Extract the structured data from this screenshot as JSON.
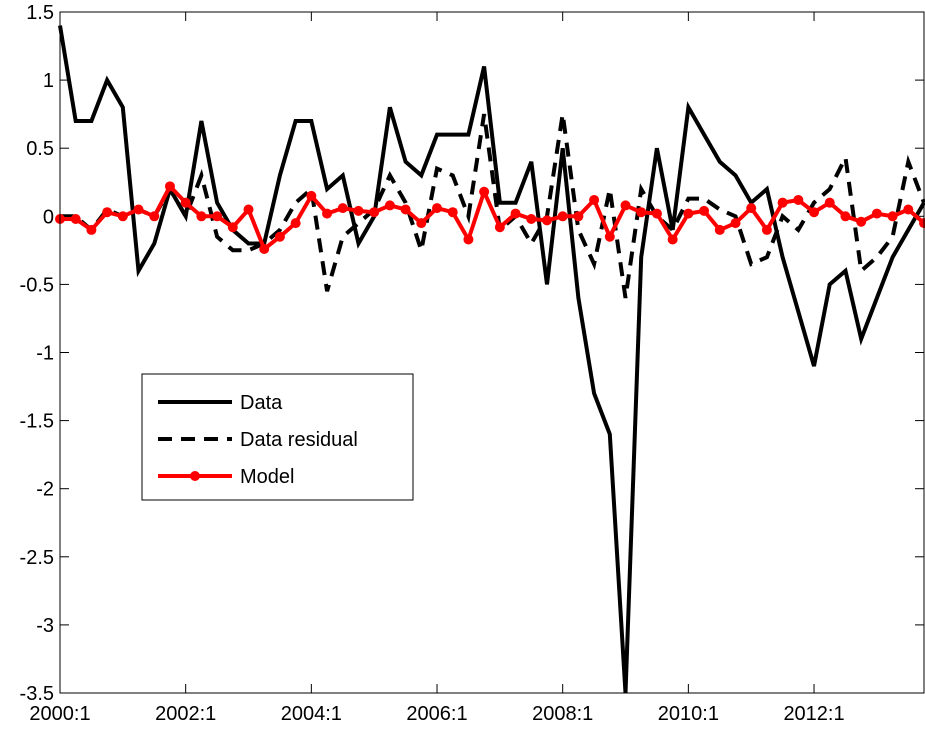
{
  "chart_data": {
    "type": "line",
    "categories": [
      "2000:1",
      null,
      null,
      null,
      null,
      null,
      null,
      null,
      "2002:1",
      null,
      null,
      null,
      null,
      null,
      null,
      null,
      "2004:1",
      null,
      null,
      null,
      null,
      null,
      null,
      null,
      "2006:1",
      null,
      null,
      null,
      null,
      null,
      null,
      null,
      "2008:1",
      null,
      null,
      null,
      null,
      null,
      null,
      null,
      "2010:1",
      null,
      null,
      null,
      null,
      null,
      null,
      null,
      "2012:1",
      null,
      null,
      null,
      null,
      null,
      null,
      null
    ],
    "series": [
      {
        "name": "Data",
        "color": "#000000",
        "values": [
          1.4,
          0.7,
          0.7,
          1.0,
          0.8,
          -0.4,
          -0.2,
          0.2,
          0.0,
          0.7,
          0.1,
          -0.1,
          -0.2,
          -0.2,
          0.3,
          0.7,
          0.7,
          0.2,
          0.3,
          -0.2,
          0.0,
          0.8,
          0.4,
          0.3,
          0.6,
          0.6,
          0.6,
          1.1,
          0.1,
          0.1,
          0.4,
          -0.5,
          0.5,
          -0.6,
          -1.3,
          -1.6,
          -3.5,
          -0.3,
          0.5,
          -0.1,
          0.8,
          0.6,
          0.4,
          0.3,
          0.1,
          0.2,
          -0.3,
          -0.7,
          -1.1,
          -0.5,
          -0.4,
          -0.9,
          -0.6,
          -0.3,
          -0.1,
          0.1
        ]
      },
      {
        "name": "Data residual",
        "color": "#000000",
        "values": [
          0,
          0,
          -0.1,
          0.05,
          0,
          0.05,
          0,
          0.2,
          0,
          0.3,
          -0.15,
          -0.25,
          -0.25,
          -0.2,
          -0.1,
          0.1,
          0.2,
          -0.55,
          -0.15,
          -0.05,
          0.05,
          0.3,
          0.1,
          -0.25,
          0.35,
          0.3,
          0.0,
          0.75,
          -0.1,
          0.0,
          -0.2,
          0.0,
          0.75,
          -0.1,
          -0.35,
          0.2,
          -0.6,
          0.2,
          0,
          -0.1,
          0.13,
          0.13,
          0.05,
          0,
          -0.35,
          -0.3,
          0,
          -0.1,
          0.1,
          0.2,
          0.43,
          -0.4,
          -0.3,
          -0.15,
          0.4,
          0.1
        ]
      },
      {
        "name": "Model",
        "color": "#ff0000",
        "values": [
          -0.02,
          -0.02,
          -0.1,
          0.03,
          0,
          0.05,
          0,
          0.22,
          0.1,
          0,
          0,
          -0.08,
          0.05,
          -0.24,
          -0.15,
          -0.05,
          0.15,
          0.02,
          0.06,
          0.04,
          0.03,
          0.08,
          0.05,
          -0.05,
          0.06,
          0.03,
          -0.17,
          0.18,
          -0.08,
          0.02,
          -0.02,
          -0.03,
          0,
          0,
          0.12,
          -0.15,
          0.08,
          0.03,
          0.02,
          -0.17,
          0.02,
          0.04,
          -0.1,
          -0.05,
          0.06,
          -0.1,
          0.1,
          0.12,
          0.03,
          0.1,
          0,
          -0.04,
          0.02,
          0,
          0.05,
          -0.05
        ]
      }
    ],
    "ylim": [
      -3.5,
      1.5
    ],
    "yticks": [
      -3.5,
      -3,
      -2.5,
      -2,
      -1.5,
      -1,
      -0.5,
      0,
      0.5,
      1,
      1.5
    ],
    "legend": "lower-left"
  }
}
